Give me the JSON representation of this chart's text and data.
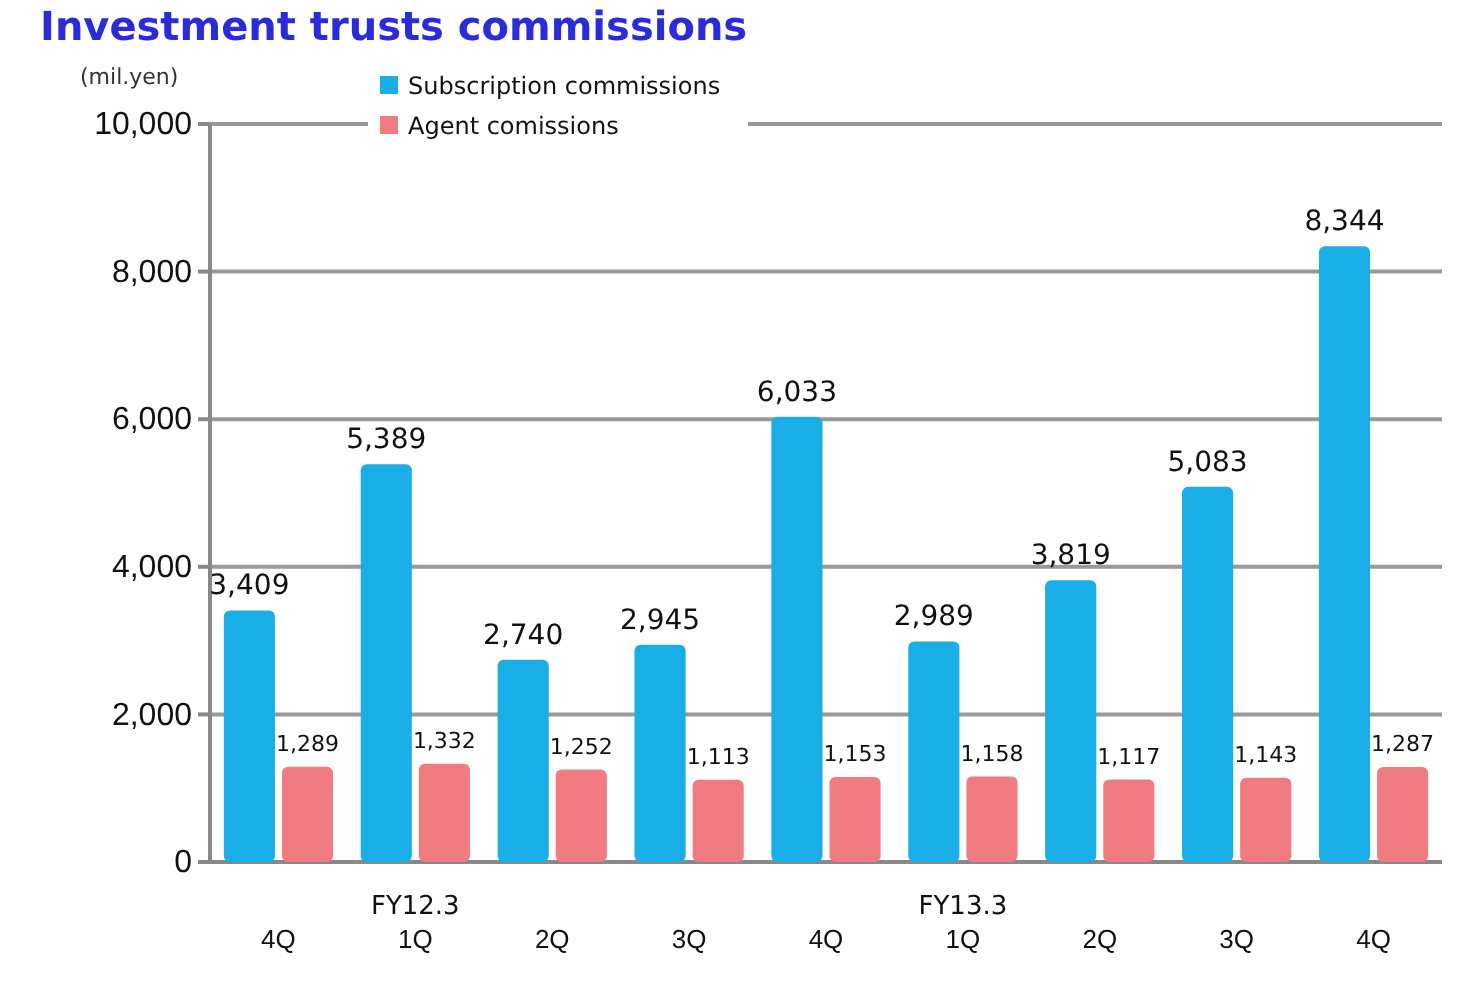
{
  "chart_data": {
    "type": "bar",
    "title": "Investment trusts commissions",
    "ylabel": "(mil.yen)",
    "categories": [
      "4Q",
      "1Q",
      "2Q",
      "3Q",
      "4Q",
      "1Q",
      "2Q",
      "3Q",
      "4Q"
    ],
    "series": [
      {
        "name": "Subscription commissions",
        "color": "#1aaee6",
        "values": [
          3409,
          5389,
          2740,
          2945,
          6033,
          2989,
          3819,
          5083,
          8344
        ],
        "value_labels": [
          "3,409",
          "5,389",
          "2,740",
          "2,945",
          "6,033",
          "2,989",
          "3,819",
          "5,083",
          "8,344"
        ]
      },
      {
        "name": "Agent comissions",
        "color": "#f07c82",
        "values": [
          1289,
          1332,
          1252,
          1113,
          1153,
          1158,
          1117,
          1143,
          1287
        ],
        "value_labels": [
          "1,289",
          "1,332",
          "1,252",
          "1,113",
          "1,153",
          "1,158",
          "1,117",
          "1,143",
          "1,287"
        ]
      }
    ],
    "ylim": [
      0,
      10000
    ],
    "yticks": [
      {
        "value": 0,
        "label": "0"
      },
      {
        "value": 2000,
        "label": "2,000"
      },
      {
        "value": 4000,
        "label": "4,000"
      },
      {
        "value": 6000,
        "label": "6,000"
      },
      {
        "value": 8000,
        "label": "8,000"
      },
      {
        "value": 10000,
        "label": "10,000"
      }
    ],
    "grid": "y",
    "legend": "top left",
    "annotations": [
      "FY12.3",
      "FY13.3"
    ]
  }
}
